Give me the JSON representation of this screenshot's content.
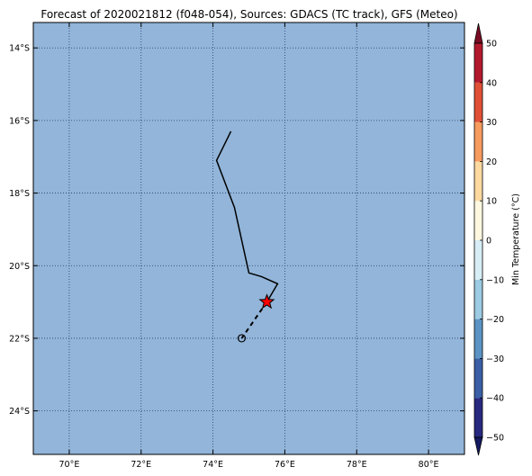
{
  "title": "Forecast of 2020021812 (f048-054), Sources: GDACS (TC track), GFS (Meteo)",
  "map": {
    "ocean_color": "#92b5d9",
    "gridline_color": "#2a3c6a",
    "lon_range": [
      69,
      81
    ],
    "lat_range": [
      -25.2,
      -13.3
    ],
    "lon_ticks": [
      70,
      72,
      74,
      76,
      78,
      80
    ],
    "lon_labels": [
      "70°E",
      "72°E",
      "74°E",
      "76°E",
      "78°E",
      "80°E"
    ],
    "lat_ticks": [
      -14,
      -16,
      -18,
      -20,
      -22,
      -24
    ],
    "lat_labels": [
      "14°S",
      "16°S",
      "18°S",
      "20°S",
      "22°S",
      "24°S"
    ]
  },
  "track": {
    "past": [
      [
        74.5,
        -16.3
      ],
      [
        74.1,
        -17.1
      ],
      [
        74.6,
        -18.4
      ],
      [
        75.0,
        -20.2
      ],
      [
        75.35,
        -20.3
      ],
      [
        75.8,
        -20.5
      ],
      [
        75.5,
        -21.0
      ]
    ],
    "forecast": [
      [
        75.5,
        -21.0
      ],
      [
        74.8,
        -22.0
      ]
    ],
    "current_position": [
      75.5,
      -21.0
    ],
    "forecast_position": [
      74.8,
      -22.0
    ],
    "marker_color": "#ff0000"
  },
  "colorbar": {
    "label": "Min Temperature (°C)",
    "ticks": [
      50,
      40,
      30,
      20,
      10,
      0,
      -10,
      -20,
      -30,
      -40,
      -50
    ],
    "tick_labels": [
      "50",
      "40",
      "30",
      "20",
      "10",
      "0",
      "−10",
      "−20",
      "−30",
      "−40",
      "−50"
    ],
    "range": [
      -50,
      50
    ],
    "segments": [
      {
        "from": -50,
        "to": -40,
        "color": "#27287f"
      },
      {
        "from": -40,
        "to": -30,
        "color": "#3a5fa6"
      },
      {
        "from": -30,
        "to": -20,
        "color": "#5b94c4"
      },
      {
        "from": -20,
        "to": -10,
        "color": "#9ccbe3"
      },
      {
        "from": -10,
        "to": 0,
        "color": "#d8eef6"
      },
      {
        "from": 0,
        "to": 10,
        "color": "#fff8e1"
      },
      {
        "from": 10,
        "to": 20,
        "color": "#fdd9a0"
      },
      {
        "from": 20,
        "to": 30,
        "color": "#f79b5f"
      },
      {
        "from": 30,
        "to": 40,
        "color": "#e05037"
      },
      {
        "from": 40,
        "to": 50,
        "color": "#b3192d"
      }
    ],
    "extend_low_color": "#151a60",
    "extend_high_color": "#7a0b24"
  }
}
